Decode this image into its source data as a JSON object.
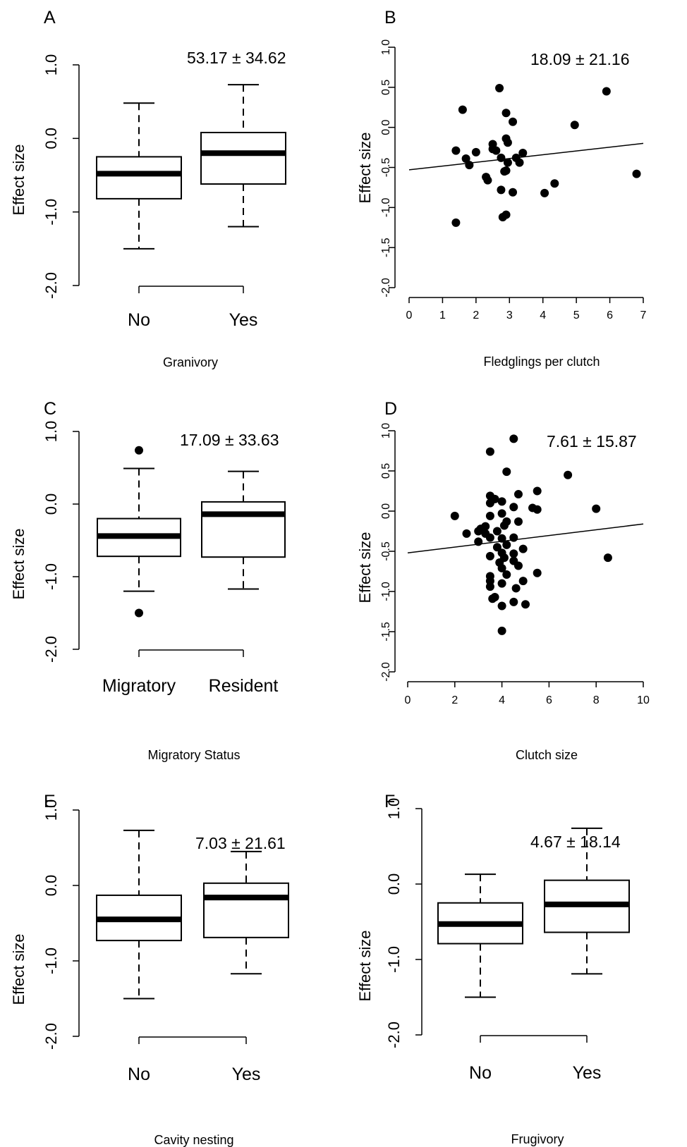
{
  "panels": [
    {
      "id": "A",
      "letter": "A",
      "stat": "53.17 ± 34.62",
      "ylabel": "Effect size",
      "xlabel": "Granivory",
      "yticks": [
        "1.0",
        "0.0",
        "-1.0",
        "-2.0"
      ],
      "xticks": [
        "No",
        "Yes"
      ]
    },
    {
      "id": "B",
      "letter": "B",
      "stat": "18.09 ± 21.16",
      "ylabel": "Effect size",
      "xlabel": "Fledglings per clutch",
      "yticks": [
        "1.0",
        "0.5",
        "0.0",
        "-0.5",
        "-1.0",
        "-1.5",
        "-2.0"
      ],
      "xticks": [
        "0",
        "1",
        "2",
        "3",
        "4",
        "5",
        "6",
        "7"
      ]
    },
    {
      "id": "C",
      "letter": "C",
      "stat": "17.09 ± 33.63",
      "ylabel": "Effect size",
      "xlabel": "Migratory Status",
      "yticks": [
        "1.0",
        "0.0",
        "-1.0",
        "-2.0"
      ],
      "xticks": [
        "Migratory",
        "Resident"
      ]
    },
    {
      "id": "D",
      "letter": "D",
      "stat": "7.61 ± 15.87",
      "ylabel": "Effect size",
      "xlabel": "Clutch size",
      "yticks": [
        "1.0",
        "0.5",
        "0.0",
        "-0.5",
        "-1.0",
        "-1.5",
        "-2.0"
      ],
      "xticks": [
        "0",
        "2",
        "4",
        "6",
        "8",
        "10"
      ]
    },
    {
      "id": "E",
      "letter": "E",
      "stat": "7.03 ± 21.61",
      "ylabel": "Effect size",
      "xlabel": "Cavity nesting",
      "yticks": [
        "1.0",
        "0.0",
        "-1.0",
        "-2.0"
      ],
      "xticks": [
        "No",
        "Yes"
      ]
    },
    {
      "id": "F",
      "letter": "F",
      "stat": "4.67 ± 18.14",
      "ylabel": "Effect size",
      "xlabel": "Frugivory",
      "yticks": [
        "1.0",
        "0.0",
        "-1.0",
        "-2.0"
      ],
      "xticks": [
        "No",
        "Yes"
      ]
    }
  ],
  "chart_data": [
    {
      "panel": "A",
      "type": "box",
      "categories": [
        "No",
        "Yes"
      ],
      "boxes": [
        {
          "category": "No",
          "whisker_low": -1.5,
          "q1": -0.82,
          "median": -0.48,
          "q3": -0.25,
          "whisker_high": 0.48,
          "outliers": []
        },
        {
          "category": "Yes",
          "whisker_low": -1.2,
          "q1": -0.62,
          "median": -0.2,
          "q3": 0.08,
          "whisker_high": 0.73,
          "outliers": []
        }
      ],
      "xlabel": "Granivory",
      "ylabel": "Effect size",
      "ylim": [
        -2.0,
        1.0
      ]
    },
    {
      "panel": "B",
      "type": "scatter",
      "points": [
        [
          1.4,
          -0.29
        ],
        [
          1.4,
          -1.19
        ],
        [
          1.6,
          0.22
        ],
        [
          1.7,
          -0.39
        ],
        [
          1.8,
          -0.47
        ],
        [
          2.0,
          -0.31
        ],
        [
          2.3,
          -0.62
        ],
        [
          2.35,
          -0.66
        ],
        [
          2.5,
          -0.21
        ],
        [
          2.5,
          -0.27
        ],
        [
          2.6,
          -0.29
        ],
        [
          2.7,
          0.49
        ],
        [
          2.75,
          -0.38
        ],
        [
          2.75,
          -0.78
        ],
        [
          2.8,
          -1.12
        ],
        [
          2.85,
          -0.55
        ],
        [
          2.9,
          0.18
        ],
        [
          2.9,
          -0.54
        ],
        [
          2.9,
          -0.14
        ],
        [
          2.9,
          -1.09
        ],
        [
          2.95,
          -0.19
        ],
        [
          2.95,
          -0.44
        ],
        [
          3.1,
          0.07
        ],
        [
          3.1,
          -0.81
        ],
        [
          3.2,
          -0.38
        ],
        [
          3.3,
          -0.44
        ],
        [
          3.4,
          -0.32
        ],
        [
          4.05,
          -0.82
        ],
        [
          4.35,
          -0.7
        ],
        [
          4.95,
          0.03
        ],
        [
          5.9,
          0.45
        ],
        [
          6.8,
          -0.58
        ]
      ],
      "trendline": {
        "x": [
          0,
          7
        ],
        "y": [
          -0.53,
          -0.2
        ]
      },
      "xlabel": "Fledglings per clutch",
      "ylabel": "Effect size",
      "xlim": [
        0,
        7
      ],
      "ylim": [
        -2.0,
        1.0
      ]
    },
    {
      "panel": "C",
      "type": "box",
      "categories": [
        "Migratory",
        "Resident"
      ],
      "boxes": [
        {
          "category": "Migratory",
          "whisker_low": -1.2,
          "q1": -0.72,
          "median": -0.44,
          "q3": -0.2,
          "whisker_high": 0.49,
          "outliers": [
            0.74,
            -1.5
          ]
        },
        {
          "category": "Resident",
          "whisker_low": -1.17,
          "q1": -0.73,
          "median": -0.14,
          "q3": 0.03,
          "whisker_high": 0.45,
          "outliers": []
        }
      ],
      "xlabel": "Migratory Status",
      "ylabel": "Effect size",
      "ylim": [
        -2.0,
        1.0
      ]
    },
    {
      "panel": "D",
      "type": "scatter",
      "points": [
        [
          2.0,
          -0.06
        ],
        [
          2.5,
          -0.28
        ],
        [
          3.0,
          -0.38
        ],
        [
          3.0,
          -0.25
        ],
        [
          3.1,
          -0.22
        ],
        [
          3.3,
          -0.28
        ],
        [
          3.3,
          -0.19
        ],
        [
          3.5,
          0.74
        ],
        [
          3.5,
          0.19
        ],
        [
          3.5,
          0.1
        ],
        [
          3.5,
          -0.06
        ],
        [
          3.5,
          -0.33
        ],
        [
          3.5,
          -0.56
        ],
        [
          3.5,
          -0.81
        ],
        [
          3.5,
          -0.87
        ],
        [
          3.5,
          -0.94
        ],
        [
          3.6,
          -1.09
        ],
        [
          3.7,
          0.15
        ],
        [
          3.7,
          -1.07
        ],
        [
          3.8,
          -0.25
        ],
        [
          3.8,
          -0.45
        ],
        [
          3.9,
          -0.64
        ],
        [
          4.0,
          -1.18
        ],
        [
          4.0,
          -1.49
        ],
        [
          4.0,
          0.12
        ],
        [
          4.0,
          -0.03
        ],
        [
          4.0,
          -0.34
        ],
        [
          4.0,
          -0.52
        ],
        [
          4.0,
          -0.71
        ],
        [
          4.0,
          -0.9
        ],
        [
          4.1,
          -0.18
        ],
        [
          4.1,
          -0.58
        ],
        [
          4.2,
          0.49
        ],
        [
          4.2,
          -0.13
        ],
        [
          4.2,
          -0.42
        ],
        [
          4.2,
          -0.79
        ],
        [
          4.5,
          0.9
        ],
        [
          4.5,
          0.05
        ],
        [
          4.5,
          -0.33
        ],
        [
          4.5,
          -0.53
        ],
        [
          4.5,
          -0.62
        ],
        [
          4.5,
          -1.13
        ],
        [
          4.6,
          -0.96
        ],
        [
          4.7,
          0.21
        ],
        [
          4.7,
          -0.13
        ],
        [
          4.7,
          -0.68
        ],
        [
          4.9,
          -0.47
        ],
        [
          4.9,
          -0.87
        ],
        [
          5.0,
          -1.16
        ],
        [
          5.3,
          0.04
        ],
        [
          5.5,
          0.25
        ],
        [
          5.5,
          0.02
        ],
        [
          5.5,
          -0.77
        ],
        [
          6.8,
          0.45
        ],
        [
          8.0,
          0.03
        ],
        [
          8.5,
          -0.58
        ]
      ],
      "trendline": {
        "x": [
          0,
          10
        ],
        "y": [
          -0.52,
          -0.16
        ]
      },
      "xlabel": "Clutch size",
      "ylabel": "Effect size",
      "xlim": [
        0,
        10
      ],
      "ylim": [
        -2.0,
        1.0
      ]
    },
    {
      "panel": "E",
      "type": "box",
      "categories": [
        "No",
        "Yes"
      ],
      "boxes": [
        {
          "category": "No",
          "whisker_low": -1.5,
          "q1": -0.73,
          "median": -0.45,
          "q3": -0.13,
          "whisker_high": 0.73,
          "outliers": []
        },
        {
          "category": "Yes",
          "whisker_low": -1.17,
          "q1": -0.69,
          "median": -0.16,
          "q3": 0.03,
          "whisker_high": 0.45,
          "outliers": []
        }
      ],
      "xlabel": "Cavity nesting",
      "ylabel": "Effect size",
      "ylim": [
        -2.0,
        1.0
      ]
    },
    {
      "panel": "F",
      "type": "box",
      "categories": [
        "No",
        "Yes"
      ],
      "boxes": [
        {
          "category": "No",
          "whisker_low": -1.5,
          "q1": -0.79,
          "median": -0.53,
          "q3": -0.25,
          "whisker_high": 0.13,
          "outliers": []
        },
        {
          "category": "Yes",
          "whisker_low": -1.19,
          "q1": -0.64,
          "median": -0.27,
          "q3": 0.05,
          "whisker_high": 0.74,
          "outliers": []
        }
      ],
      "xlabel": "Frugivory",
      "ylabel": "Effect size",
      "ylim": [
        -2.0,
        1.0
      ]
    }
  ]
}
